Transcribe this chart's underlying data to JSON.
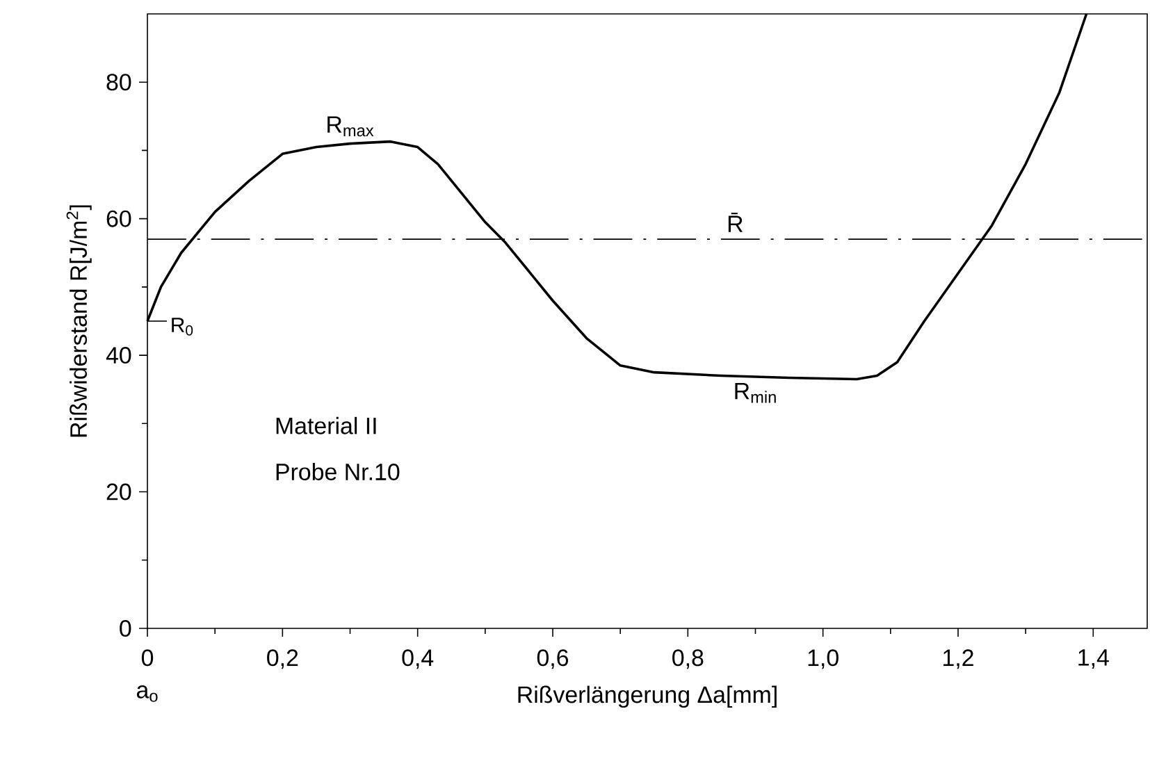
{
  "chart_data": {
    "type": "line",
    "xlabel": "Rißverlängerung Δa[mm]",
    "ylabel": "Rißwiderstand R[J/m$^{2}$]",
    "x": [
      0,
      0.02,
      0.05,
      0.1,
      0.15,
      0.2,
      0.25,
      0.3,
      0.36,
      0.4,
      0.43,
      0.5,
      0.53,
      0.6,
      0.65,
      0.7,
      0.75,
      0.85,
      0.95,
      1.05,
      1.08,
      1.11,
      1.15,
      1.2,
      1.25,
      1.3,
      1.35,
      1.39
    ],
    "series": [
      {
        "color": "#000000",
        "values": [
          45,
          50,
          55,
          61,
          65.5,
          69.5,
          70.5,
          71,
          71.3,
          70.5,
          68,
          59.5,
          56.5,
          48,
          42.5,
          38.5,
          37.5,
          37,
          36.7,
          36.5,
          37,
          39,
          45,
          52,
          59,
          68,
          78.5,
          90
        ]
      }
    ],
    "xlim": [
      0,
      1.48
    ],
    "ylim": [
      0,
      90
    ],
    "xticks": [
      0,
      {
        "value": 0.2,
        "label": "0,2"
      },
      {
        "value": 0.4,
        "label": "0,4"
      },
      {
        "value": 0.6,
        "label": "0,6"
      },
      {
        "value": 0.8,
        "label": "0,8"
      },
      {
        "value": 1.0,
        "label": "1,0"
      },
      {
        "value": 1.2,
        "label": "1,2"
      },
      {
        "value": 1.4,
        "label": "1,4"
      }
    ],
    "yticks": [
      0,
      20,
      40,
      60,
      80
    ],
    "ref_lines": [
      {
        "axis": "y",
        "value": 57,
        "color": "#000000",
        "line_style": "dashdotted"
      }
    ],
    "annotations": [
      {
        "text": "R$_{0}$",
        "x": 0,
        "y": 45
      },
      {
        "text": "R$_{max}$",
        "x": 0.3,
        "y": 71
      },
      {
        "text": "R̄",
        "x": 0.87,
        "y": 57
      },
      {
        "text": "R$_{min}$",
        "x": 0.9,
        "y": 37
      },
      "Material II",
      "Probe Nr.10",
      "a$_{o}$"
    ],
    "marker": "none",
    "line_style": "solid"
  }
}
